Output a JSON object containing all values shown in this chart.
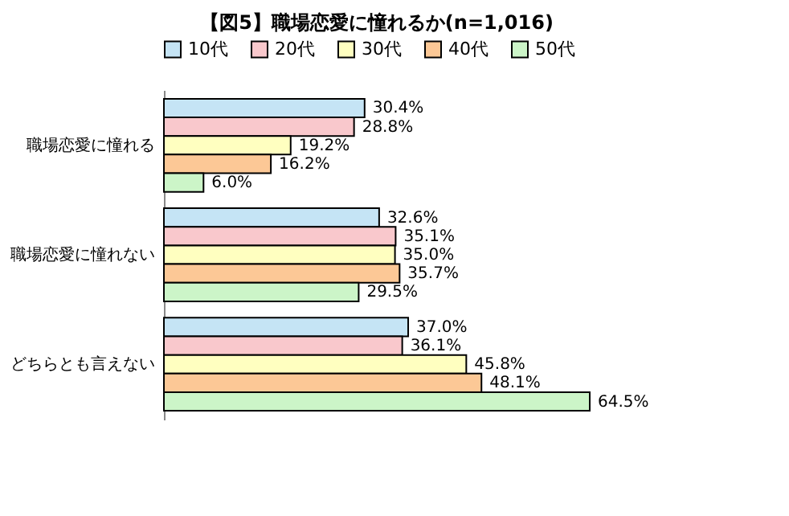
{
  "chart_data": {
    "type": "bar",
    "orientation": "horizontal",
    "title": "【図5】職場恋愛に憧れるか(n=1,016)",
    "categories": [
      "職場恋愛に憧れる",
      "職場恋愛に憧れない",
      "どちらとも言えない"
    ],
    "series": [
      {
        "name": "10代",
        "color": "#c5e4f5",
        "values": [
          30.4,
          32.6,
          37.0
        ],
        "value_labels": [
          "30.4%",
          "32.6%",
          "37.0%"
        ]
      },
      {
        "name": "20代",
        "color": "#f9c8cc",
        "values": [
          28.8,
          35.1,
          36.1
        ],
        "value_labels": [
          "28.8%",
          "35.1%",
          "36.1%"
        ]
      },
      {
        "name": "30代",
        "color": "#ffffc0",
        "values": [
          19.2,
          35.0,
          45.8
        ],
        "value_labels": [
          "19.2%",
          "35.0%",
          "45.8%"
        ]
      },
      {
        "name": "40代",
        "color": "#fcc896",
        "values": [
          16.2,
          35.7,
          48.1
        ],
        "value_labels": [
          "16.2%",
          "35.7%",
          "48.1%"
        ]
      },
      {
        "name": "50代",
        "color": "#ccf5c8",
        "values": [
          6.0,
          29.5,
          64.5
        ],
        "value_labels": [
          "6.0%",
          "29.5%",
          "64.5%"
        ]
      }
    ],
    "legend": "top"
  }
}
